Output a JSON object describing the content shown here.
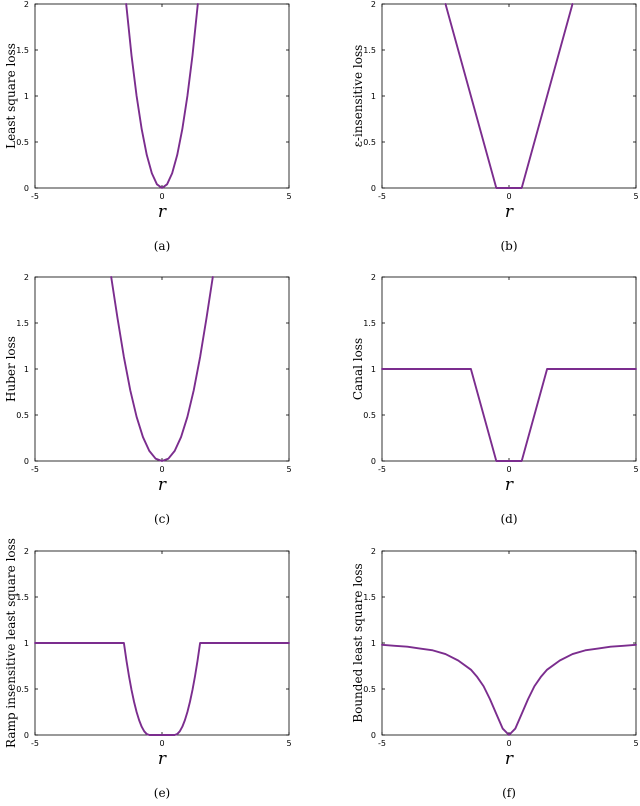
{
  "line_color": "#7B2D8E",
  "chart_data": [
    {
      "type": "line",
      "caption": "(a)",
      "xlabel": "r",
      "ylabel": "Least square loss",
      "xlim": [
        -5,
        5
      ],
      "ylim": [
        0,
        2
      ],
      "xticks": [
        "-5",
        "0",
        "5"
      ],
      "yticks": [
        "0",
        "0.5",
        "1",
        "1.5",
        "2"
      ],
      "grid": false,
      "series": [
        {
          "x": [
            -1.41,
            -1.2,
            -1.0,
            -0.8,
            -0.6,
            -0.4,
            -0.2,
            0,
            0.2,
            0.4,
            0.6,
            0.8,
            1.0,
            1.2,
            1.41
          ],
          "y": [
            2.0,
            1.44,
            1.0,
            0.64,
            0.36,
            0.16,
            0.04,
            0,
            0.04,
            0.16,
            0.36,
            0.64,
            1.0,
            1.44,
            2.0
          ]
        }
      ]
    },
    {
      "type": "line",
      "caption": "(b)",
      "xlabel": "r",
      "ylabel": "ε-insensitive loss",
      "xlim": [
        -5,
        5
      ],
      "ylim": [
        0,
        2
      ],
      "xticks": [
        "-5",
        "0",
        "5"
      ],
      "yticks": [
        "0",
        "0.5",
        "1",
        "1.5",
        "2"
      ],
      "grid": false,
      "series": [
        {
          "x": [
            -2.5,
            -0.5,
            0.5,
            2.5
          ],
          "y": [
            2.0,
            0,
            0,
            2.0
          ]
        }
      ]
    },
    {
      "type": "line",
      "caption": "(c)",
      "xlabel": "r",
      "ylabel": "Huber loss",
      "xlim": [
        -5,
        5
      ],
      "ylim": [
        0,
        2
      ],
      "xticks": [
        "-5",
        "0",
        "5"
      ],
      "yticks": [
        "0",
        "0.5",
        "1",
        "1.5",
        "2"
      ],
      "grid": false,
      "series": [
        {
          "x": [
            -2.0,
            -1.75,
            -1.5,
            -1.25,
            -1.0,
            -0.75,
            -0.5,
            -0.25,
            0,
            0.25,
            0.5,
            0.75,
            1.0,
            1.25,
            1.5,
            1.75,
            2.0
          ],
          "y": [
            2.0,
            1.55,
            1.13,
            0.77,
            0.48,
            0.26,
            0.11,
            0.025,
            0,
            0.025,
            0.11,
            0.26,
            0.48,
            0.77,
            1.13,
            1.55,
            2.0
          ]
        }
      ]
    },
    {
      "type": "line",
      "caption": "(d)",
      "xlabel": "r",
      "ylabel": "Canal loss",
      "xlim": [
        -5,
        5
      ],
      "ylim": [
        0,
        2
      ],
      "xticks": [
        "-5",
        "0",
        "5"
      ],
      "yticks": [
        "0",
        "0.5",
        "1",
        "1.5",
        "2"
      ],
      "grid": false,
      "series": [
        {
          "x": [
            -5,
            -1.5,
            -0.5,
            0.5,
            1.5,
            5
          ],
          "y": [
            1,
            1,
            0,
            0,
            1,
            1
          ]
        }
      ]
    },
    {
      "type": "line",
      "caption": "(e)",
      "xlabel": "r",
      "ylabel": "Ramp insensitive least square loss",
      "xlim": [
        -5,
        5
      ],
      "ylim": [
        0,
        2
      ],
      "xticks": [
        "-5",
        "0",
        "5"
      ],
      "yticks": [
        "0",
        "0.5",
        "1",
        "1.5",
        "2"
      ],
      "grid": false,
      "series": [
        {
          "x": [
            -5,
            -1.5,
            -1.4,
            -1.3,
            -1.2,
            -1.1,
            -1.0,
            -0.9,
            -0.8,
            -0.7,
            -0.6,
            -0.5,
            0.5,
            0.6,
            0.7,
            0.8,
            0.9,
            1.0,
            1.1,
            1.2,
            1.3,
            1.4,
            1.5,
            5
          ],
          "y": [
            1,
            1,
            0.81,
            0.64,
            0.49,
            0.36,
            0.25,
            0.16,
            0.09,
            0.04,
            0.01,
            0,
            0,
            0.01,
            0.04,
            0.09,
            0.16,
            0.25,
            0.36,
            0.49,
            0.64,
            0.81,
            1,
            1
          ]
        }
      ]
    },
    {
      "type": "line",
      "caption": "(f)",
      "xlabel": "r",
      "ylabel": "Bounded least square loss",
      "xlim": [
        -5,
        5
      ],
      "ylim": [
        0,
        2
      ],
      "xticks": [
        "-5",
        "0",
        "5"
      ],
      "yticks": [
        "0",
        "0.5",
        "1",
        "1.5",
        "2"
      ],
      "grid": false,
      "series": [
        {
          "x": [
            -5,
            -4.5,
            -4,
            -3.5,
            -3,
            -2.5,
            -2,
            -1.5,
            -1.25,
            -1,
            -0.75,
            -0.5,
            -0.25,
            0,
            0.25,
            0.5,
            0.75,
            1,
            1.25,
            1.5,
            2,
            2.5,
            3,
            3.5,
            4,
            4.5,
            5
          ],
          "y": [
            0.98,
            0.97,
            0.96,
            0.94,
            0.92,
            0.88,
            0.81,
            0.71,
            0.63,
            0.53,
            0.39,
            0.23,
            0.07,
            0,
            0.07,
            0.23,
            0.39,
            0.53,
            0.63,
            0.71,
            0.81,
            0.88,
            0.92,
            0.94,
            0.96,
            0.97,
            0.98
          ]
        }
      ]
    }
  ]
}
